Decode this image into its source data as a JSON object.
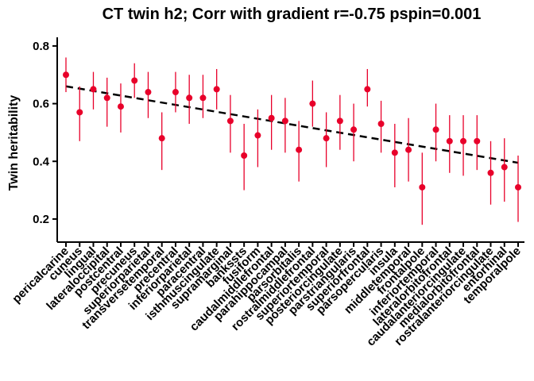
{
  "chart_data": {
    "type": "scatter",
    "title": "CT twin h2; Corr with gradient r=-0.75 pspin=0.001",
    "xlabel": "",
    "ylabel": "Twin heritability",
    "ylim": [
      0.12,
      0.83
    ],
    "yticks": [
      0.2,
      0.4,
      0.6,
      0.8
    ],
    "ytick_labels": [
      "0.2",
      "0.4",
      "0.6",
      "0.8"
    ],
    "grid": false,
    "point_color": "#e8002a",
    "errorbar_color": "#e8002a",
    "trend_color": "#000000",
    "trend_style": "dashed",
    "trend_line": {
      "start": 0.66,
      "end": 0.395
    },
    "categories": [
      "pericalcarine",
      "cuneus",
      "lingual",
      "lateraloccipital",
      "postcentral",
      "precuneus",
      "superiorparietal",
      "transversetemporal",
      "precentral",
      "inferiorparietal",
      "paracentral",
      "isthmuscingulate",
      "supramarginal",
      "bankssts",
      "fusiform",
      "caudalmiddlefrontal",
      "parahippocampal",
      "parsorbitalis",
      "rostralmiddlefrontal",
      "superiortemporal",
      "posteriorcingulate",
      "parstriangularis",
      "superiorfrontal",
      "parsopercularis",
      "insula",
      "middletemporal",
      "frontalpole",
      "inferiortemporal",
      "lateralorbitofrontal",
      "caudalanteriorcingulate",
      "medialorbitofrontal",
      "rostralanteriorcingulate",
      "entorhinal",
      "temporalpole"
    ],
    "values": [
      0.7,
      0.57,
      0.65,
      0.62,
      0.59,
      0.68,
      0.64,
      0.48,
      0.64,
      0.62,
      0.62,
      0.65,
      0.54,
      0.42,
      0.49,
      0.55,
      0.54,
      0.44,
      0.6,
      0.48,
      0.54,
      0.51,
      0.65,
      0.53,
      0.43,
      0.44,
      0.31,
      0.51,
      0.47,
      0.47,
      0.47,
      0.36,
      0.38,
      0.31
    ],
    "lower": [
      0.64,
      0.47,
      0.58,
      0.52,
      0.5,
      0.62,
      0.55,
      0.37,
      0.57,
      0.53,
      0.55,
      0.58,
      0.43,
      0.3,
      0.38,
      0.44,
      0.43,
      0.33,
      0.52,
      0.38,
      0.44,
      0.4,
      0.59,
      0.43,
      0.31,
      0.33,
      0.18,
      0.4,
      0.36,
      0.35,
      0.37,
      0.25,
      0.26,
      0.19
    ],
    "upper": [
      0.76,
      0.66,
      0.71,
      0.69,
      0.67,
      0.74,
      0.71,
      0.57,
      0.71,
      0.7,
      0.7,
      0.72,
      0.63,
      0.53,
      0.58,
      0.63,
      0.62,
      0.54,
      0.68,
      0.57,
      0.63,
      0.6,
      0.72,
      0.61,
      0.53,
      0.55,
      0.43,
      0.6,
      0.56,
      0.56,
      0.56,
      0.47,
      0.48,
      0.42
    ]
  }
}
